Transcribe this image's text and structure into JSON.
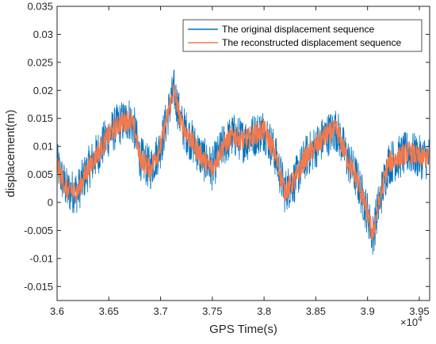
{
  "chart_data": {
    "type": "line",
    "title": "",
    "xlabel": "GPS Time(s)",
    "ylabel": "displacement(m)",
    "x_exponent_label": "×10",
    "x_exponent_power": "4",
    "xlim": [
      3.6,
      3.96
    ],
    "ylim": [
      -0.0175,
      0.035
    ],
    "x_ticks": [
      3.6,
      3.65,
      3.7,
      3.75,
      3.8,
      3.85,
      3.9,
      3.95
    ],
    "x_tick_labels": [
      "3.6",
      "3.65",
      "3.7",
      "3.75",
      "3.8",
      "3.85",
      "3.9",
      "3.95"
    ],
    "y_ticks": [
      -0.015,
      -0.01,
      -0.005,
      0,
      0.005,
      0.01,
      0.015,
      0.02,
      0.025,
      0.03,
      0.035
    ],
    "y_tick_labels": [
      "-0.015",
      "-0.01",
      "-0.005",
      "0",
      "0.005",
      "0.01",
      "0.015",
      "0.02",
      "0.025",
      "0.03",
      "0.035"
    ],
    "grid": false,
    "legend_position": "top-right",
    "series": [
      {
        "name": "The original displacement sequence",
        "color": "#0072BD",
        "noise_amplitude": 0.004,
        "x": [
          3.6,
          3.603,
          3.61,
          3.62,
          3.63,
          3.64,
          3.65,
          3.66,
          3.67,
          3.675,
          3.68,
          3.69,
          3.7,
          3.705,
          3.71,
          3.713,
          3.72,
          3.73,
          3.74,
          3.75,
          3.76,
          3.77,
          3.78,
          3.79,
          3.8,
          3.81,
          3.82,
          3.83,
          3.84,
          3.85,
          3.86,
          3.87,
          3.88,
          3.89,
          3.895,
          3.9,
          3.905,
          3.91,
          3.92,
          3.93,
          3.94,
          3.95,
          3.96
        ],
        "y": [
          0.007,
          0.005,
          0.002,
          0.002,
          0.006,
          0.009,
          0.012,
          0.014,
          0.015,
          0.013,
          0.008,
          0.006,
          0.01,
          0.014,
          0.018,
          0.02,
          0.014,
          0.011,
          0.008,
          0.006,
          0.01,
          0.012,
          0.011,
          0.012,
          0.013,
          0.009,
          0.002,
          0.004,
          0.008,
          0.01,
          0.012,
          0.013,
          0.008,
          0.004,
          0.001,
          -0.002,
          -0.006,
          -0.001,
          0.007,
          0.008,
          0.009,
          0.008,
          0.008
        ]
      },
      {
        "name": "The reconstructed displacement sequence",
        "color": "#F47A4E",
        "noise_amplitude": 0.002,
        "x": [
          3.6,
          3.603,
          3.61,
          3.62,
          3.63,
          3.64,
          3.65,
          3.66,
          3.67,
          3.675,
          3.68,
          3.69,
          3.7,
          3.705,
          3.71,
          3.713,
          3.72,
          3.73,
          3.74,
          3.75,
          3.76,
          3.77,
          3.78,
          3.79,
          3.8,
          3.81,
          3.82,
          3.83,
          3.84,
          3.85,
          3.86,
          3.87,
          3.88,
          3.89,
          3.895,
          3.9,
          3.905,
          3.91,
          3.92,
          3.93,
          3.94,
          3.95,
          3.96
        ],
        "y": [
          0.007,
          0.005,
          0.002,
          0.002,
          0.006,
          0.009,
          0.012,
          0.014,
          0.015,
          0.013,
          0.008,
          0.006,
          0.01,
          0.014,
          0.018,
          0.02,
          0.014,
          0.011,
          0.008,
          0.006,
          0.01,
          0.012,
          0.011,
          0.012,
          0.013,
          0.009,
          0.002,
          0.004,
          0.008,
          0.01,
          0.012,
          0.013,
          0.008,
          0.004,
          0.001,
          -0.002,
          -0.006,
          -0.001,
          0.007,
          0.008,
          0.009,
          0.008,
          0.008
        ]
      }
    ]
  }
}
